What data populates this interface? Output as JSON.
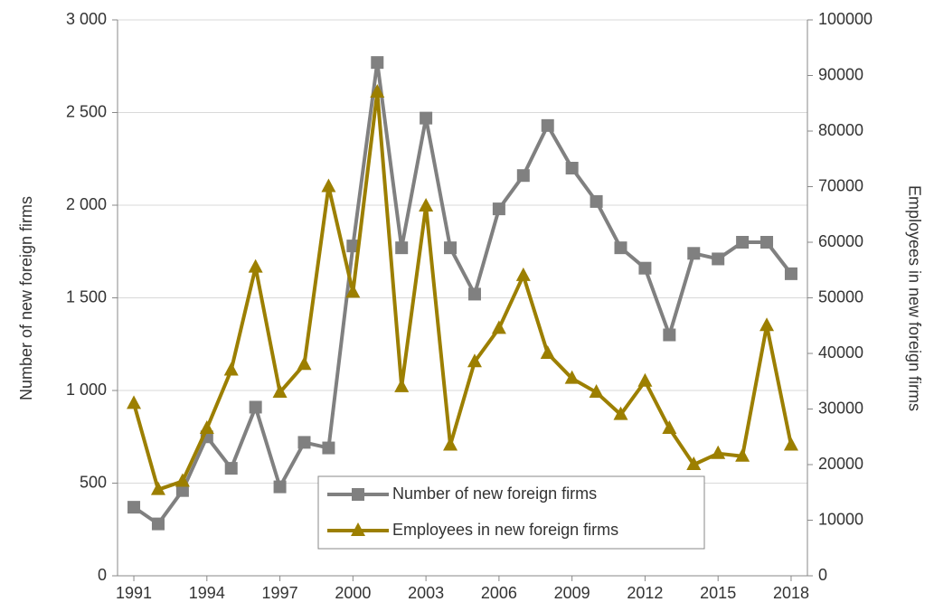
{
  "chart_data": {
    "type": "line",
    "y_label": "Number of new foreign firms",
    "y2_label": "Employees in new foreign firms",
    "x": [
      1991,
      1992,
      1993,
      1994,
      1995,
      1996,
      1997,
      1998,
      1999,
      2000,
      2001,
      2002,
      2003,
      2004,
      2005,
      2006,
      2007,
      2008,
      2009,
      2010,
      2011,
      2012,
      2013,
      2014,
      2015,
      2016,
      2017,
      2018
    ],
    "series": [
      {
        "name": "Number of new foreign firms",
        "color": "#808080",
        "marker": "square",
        "values": [
          370,
          280,
          460,
          750,
          580,
          910,
          480,
          720,
          690,
          1780,
          2770,
          1770,
          2470,
          1770,
          1520,
          1980,
          2160,
          2430,
          2200,
          2020,
          1770,
          1660,
          1300,
          1740,
          1710,
          1800,
          1800,
          1630
        ]
      },
      {
        "name": "Employees in new foreign firms",
        "color": "#9c7f00",
        "marker": "triangle",
        "axis": "y2",
        "values": [
          31000,
          15500,
          17000,
          26500,
          37000,
          55500,
          33000,
          38000,
          70000,
          51000,
          87000,
          34000,
          66500,
          23500,
          38500,
          44500,
          54000,
          40000,
          35500,
          33000,
          29000,
          35000,
          26500,
          20000,
          22000,
          21500,
          45000,
          23500
        ]
      }
    ],
    "xlim": [
      1990.33,
      2018.67
    ],
    "xticks": [
      1991,
      1994,
      1997,
      2000,
      2003,
      2006,
      2009,
      2012,
      2015,
      2018
    ],
    "ylim": [
      0,
      3000
    ],
    "yticks": [
      0,
      500,
      {
        "value": 1000,
        "label": "1 000"
      },
      {
        "value": 1500,
        "label": "1 500"
      },
      {
        "value": 2000,
        "label": "2 000"
      },
      {
        "value": 2500,
        "label": "2 500"
      },
      {
        "value": 3000,
        "label": "3 000"
      }
    ],
    "y2lim": [
      0,
      100000
    ],
    "y2ticks": [
      0,
      10000,
      20000,
      30000,
      40000,
      50000,
      60000,
      70000,
      80000,
      90000,
      100000
    ],
    "grid": true,
    "legend": "bottom-center"
  }
}
